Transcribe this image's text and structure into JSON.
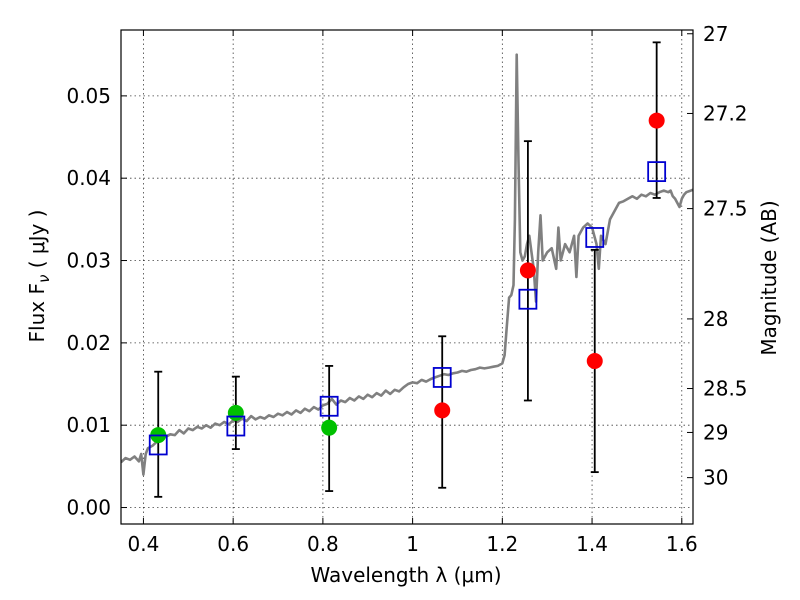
{
  "chart_data": {
    "type": "scatter",
    "xlabel": "Wavelength  λ (μm)",
    "ylabel": "Flux  F",
    "ylabel_sub": "ν",
    "ylabel_unit": "  ( μJy )",
    "y2label": "Magnitude (AB)",
    "xlim": [
      0.35,
      1.625
    ],
    "ylim": [
      -0.002,
      0.058
    ],
    "grid": true,
    "x_ticks": [
      0.4,
      0.6,
      0.8,
      1.0,
      1.2,
      1.4,
      1.6
    ],
    "x_tick_labels": [
      "0.4",
      "0.6",
      "0.8",
      "1",
      "1.2",
      "1.4",
      "1.6"
    ],
    "y_ticks": [
      0.0,
      0.01,
      0.02,
      0.03,
      0.04,
      0.05
    ],
    "y_tick_labels": [
      "0.00",
      "0.01",
      "0.02",
      "0.03",
      "0.04",
      "0.05"
    ],
    "y2_ticks": [
      27.0,
      27.2,
      27.5,
      28.0,
      28.5,
      29.0,
      30.0
    ],
    "y2_tick_labels": [
      "27",
      "27.2",
      "27.5",
      "28",
      "28.5",
      "29",
      "30"
    ],
    "colors": {
      "spectrum": "#808080",
      "green": "#00c000",
      "red": "#ff0000",
      "model_box": "#0000d0",
      "errorbar": "#000000"
    },
    "series": [
      {
        "name": "model spectrum",
        "kind": "line",
        "points": [
          [
            0.35,
            0.0055
          ],
          [
            0.36,
            0.006
          ],
          [
            0.37,
            0.0058
          ],
          [
            0.38,
            0.0062
          ],
          [
            0.39,
            0.0056
          ],
          [
            0.395,
            0.0065
          ],
          [
            0.4,
            0.004
          ],
          [
            0.405,
            0.0065
          ],
          [
            0.41,
            0.0072
          ],
          [
            0.42,
            0.0075
          ],
          [
            0.43,
            0.008
          ],
          [
            0.44,
            0.0084
          ],
          [
            0.45,
            0.0086
          ],
          [
            0.46,
            0.0089
          ],
          [
            0.47,
            0.0088
          ],
          [
            0.48,
            0.0094
          ],
          [
            0.49,
            0.009
          ],
          [
            0.5,
            0.0096
          ],
          [
            0.51,
            0.0094
          ],
          [
            0.52,
            0.0098
          ],
          [
            0.53,
            0.0096
          ],
          [
            0.54,
            0.01
          ],
          [
            0.55,
            0.0097
          ],
          [
            0.56,
            0.0102
          ],
          [
            0.57,
            0.01
          ],
          [
            0.58,
            0.0104
          ],
          [
            0.59,
            0.0101
          ],
          [
            0.6,
            0.0106
          ],
          [
            0.61,
            0.0104
          ],
          [
            0.62,
            0.0108
          ],
          [
            0.63,
            0.0105
          ],
          [
            0.64,
            0.0111
          ],
          [
            0.65,
            0.0107
          ],
          [
            0.66,
            0.011
          ],
          [
            0.67,
            0.0108
          ],
          [
            0.68,
            0.0112
          ],
          [
            0.69,
            0.011
          ],
          [
            0.7,
            0.0114
          ],
          [
            0.71,
            0.0112
          ],
          [
            0.72,
            0.0116
          ],
          [
            0.73,
            0.0113
          ],
          [
            0.74,
            0.0118
          ],
          [
            0.75,
            0.0115
          ],
          [
            0.76,
            0.012
          ],
          [
            0.77,
            0.0117
          ],
          [
            0.78,
            0.0122
          ],
          [
            0.79,
            0.0119
          ],
          [
            0.8,
            0.0124
          ],
          [
            0.81,
            0.0126
          ],
          [
            0.82,
            0.0132
          ],
          [
            0.83,
            0.0125
          ],
          [
            0.84,
            0.013
          ],
          [
            0.85,
            0.0128
          ],
          [
            0.86,
            0.0133
          ],
          [
            0.87,
            0.013
          ],
          [
            0.88,
            0.0135
          ],
          [
            0.89,
            0.0132
          ],
          [
            0.9,
            0.0137
          ],
          [
            0.91,
            0.0134
          ],
          [
            0.92,
            0.0139
          ],
          [
            0.93,
            0.0136
          ],
          [
            0.94,
            0.0142
          ],
          [
            0.95,
            0.0138
          ],
          [
            0.96,
            0.0143
          ],
          [
            0.97,
            0.0141
          ],
          [
            0.98,
            0.0146
          ],
          [
            0.99,
            0.015
          ],
          [
            1.0,
            0.0152
          ],
          [
            1.01,
            0.0151
          ],
          [
            1.02,
            0.0155
          ],
          [
            1.03,
            0.0153
          ],
          [
            1.04,
            0.0156
          ],
          [
            1.05,
            0.0158
          ],
          [
            1.06,
            0.016
          ],
          [
            1.07,
            0.0162
          ],
          [
            1.08,
            0.0161
          ],
          [
            1.09,
            0.0163
          ],
          [
            1.1,
            0.0164
          ],
          [
            1.11,
            0.0166
          ],
          [
            1.12,
            0.0165
          ],
          [
            1.13,
            0.0167
          ],
          [
            1.14,
            0.0168
          ],
          [
            1.15,
            0.017
          ],
          [
            1.16,
            0.0169
          ],
          [
            1.17,
            0.017
          ],
          [
            1.18,
            0.0171
          ],
          [
            1.19,
            0.0172
          ],
          [
            1.2,
            0.0175
          ],
          [
            1.205,
            0.0185
          ],
          [
            1.21,
            0.022
          ],
          [
            1.215,
            0.0255
          ],
          [
            1.22,
            0.0258
          ],
          [
            1.225,
            0.027
          ],
          [
            1.228,
            0.035
          ],
          [
            1.232,
            0.055
          ],
          [
            1.236,
            0.042
          ],
          [
            1.24,
            0.031
          ],
          [
            1.245,
            0.03
          ],
          [
            1.25,
            0.0305
          ],
          [
            1.255,
            0.032
          ],
          [
            1.26,
            0.033
          ],
          [
            1.265,
            0.031
          ],
          [
            1.27,
            0.029
          ],
          [
            1.275,
            0.025
          ],
          [
            1.28,
            0.031
          ],
          [
            1.285,
            0.0355
          ],
          [
            1.29,
            0.03
          ],
          [
            1.3,
            0.031
          ],
          [
            1.31,
            0.0315
          ],
          [
            1.32,
            0.029
          ],
          [
            1.325,
            0.034
          ],
          [
            1.33,
            0.03
          ],
          [
            1.34,
            0.032
          ],
          [
            1.35,
            0.031
          ],
          [
            1.36,
            0.033
          ],
          [
            1.365,
            0.028
          ],
          [
            1.37,
            0.033
          ],
          [
            1.38,
            0.034
          ],
          [
            1.39,
            0.0345
          ],
          [
            1.4,
            0.034
          ],
          [
            1.405,
            0.033
          ],
          [
            1.41,
            0.032
          ],
          [
            1.415,
            0.029
          ],
          [
            1.42,
            0.033
          ],
          [
            1.43,
            0.032
          ],
          [
            1.44,
            0.035
          ],
          [
            1.45,
            0.036
          ],
          [
            1.46,
            0.037
          ],
          [
            1.47,
            0.0372
          ],
          [
            1.48,
            0.0375
          ],
          [
            1.49,
            0.0378
          ],
          [
            1.5,
            0.0375
          ],
          [
            1.51,
            0.038
          ],
          [
            1.52,
            0.0378
          ],
          [
            1.53,
            0.0382
          ],
          [
            1.54,
            0.038
          ],
          [
            1.55,
            0.0383
          ],
          [
            1.56,
            0.0385
          ],
          [
            1.57,
            0.0383
          ],
          [
            1.575,
            0.0385
          ],
          [
            1.58,
            0.0378
          ],
          [
            1.585,
            0.0375
          ],
          [
            1.59,
            0.037
          ],
          [
            1.595,
            0.0365
          ],
          [
            1.6,
            0.0375
          ],
          [
            1.605,
            0.038
          ],
          [
            1.61,
            0.0383
          ],
          [
            1.62,
            0.0385
          ],
          [
            1.625,
            0.0386
          ]
        ]
      },
      {
        "name": "green detections",
        "kind": "errorbar",
        "color": "green",
        "points": [
          {
            "x": 0.433,
            "y": 0.0088,
            "err_low": 0.0013,
            "err_high": 0.0165
          },
          {
            "x": 0.606,
            "y": 0.0115,
            "err_low": 0.0071,
            "err_high": 0.0159
          },
          {
            "x": 0.814,
            "y": 0.0097,
            "err_low": 0.002,
            "err_high": 0.0172
          }
        ]
      },
      {
        "name": "red detections",
        "kind": "errorbar",
        "color": "red",
        "points": [
          {
            "x": 1.066,
            "y": 0.0118,
            "err_low": 0.0024,
            "err_high": 0.0208
          },
          {
            "x": 1.257,
            "y": 0.0288,
            "err_low": 0.013,
            "err_high": 0.0445
          },
          {
            "x": 1.406,
            "y": 0.0178,
            "err_low": 0.0043,
            "err_high": 0.0313
          },
          {
            "x": 1.544,
            "y": 0.047,
            "err_low": 0.0376,
            "err_high": 0.0565
          }
        ]
      },
      {
        "name": "model photometry",
        "kind": "square",
        "color": "model_box",
        "points": [
          {
            "x": 0.433,
            "y": 0.0076
          },
          {
            "x": 0.606,
            "y": 0.0099
          },
          {
            "x": 0.814,
            "y": 0.0123
          },
          {
            "x": 1.066,
            "y": 0.0158
          },
          {
            "x": 1.257,
            "y": 0.0253
          },
          {
            "x": 1.406,
            "y": 0.0328
          },
          {
            "x": 1.544,
            "y": 0.0408
          }
        ]
      }
    ]
  }
}
